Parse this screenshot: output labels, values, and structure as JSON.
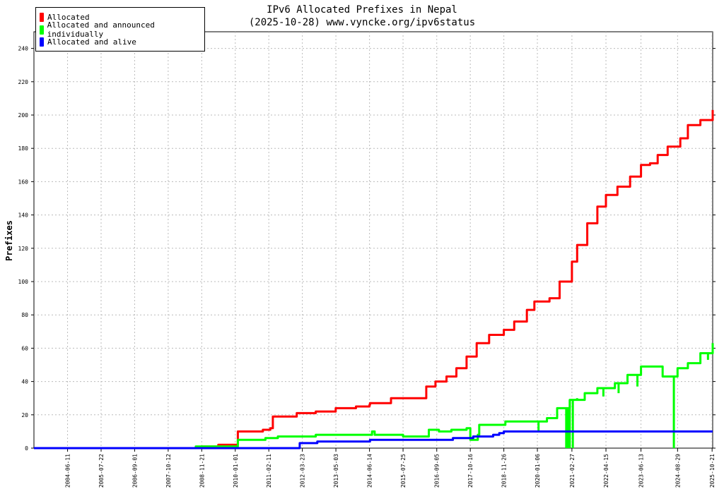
{
  "chart_data": {
    "type": "line",
    "title": "IPv6 Allocated Prefixes in Nepal",
    "subtitle": "(2025-10-28) www.vyncke.org/ipv6status",
    "ylabel": "Prefixes",
    "xlabel": "",
    "ylim": [
      0,
      250
    ],
    "yticks": [
      0,
      20,
      40,
      60,
      80,
      100,
      120,
      140,
      160,
      180,
      200,
      220,
      240
    ],
    "xlim": [
      "2003-05-01",
      "2025-10-28"
    ],
    "xticks": [
      "2004-06-11",
      "2005-07-22",
      "2006-09-01",
      "2007-10-12",
      "2008-11-21",
      "2010-01-01",
      "2011-02-11",
      "2012-03-23",
      "2013-05-03",
      "2014-06-14",
      "2015-07-25",
      "2016-09-05",
      "2017-10-16",
      "2018-11-26",
      "2020-01-06",
      "2021-02-27",
      "2022-04-15",
      "2023-06-13",
      "2024-08-29",
      "2025-10-21"
    ],
    "grid": true,
    "legend_position": "top-left",
    "series": [
      {
        "name": "Allocated",
        "color": "#ff0000",
        "points": [
          [
            "2003-05-01",
            0
          ],
          [
            "2008-11-10",
            0
          ],
          [
            "2008-11-20",
            1
          ],
          [
            "2009-06-01",
            1
          ],
          [
            "2009-06-10",
            2
          ],
          [
            "2009-12-20",
            2
          ],
          [
            "2010-02-01",
            10
          ],
          [
            "2010-12-01",
            11
          ],
          [
            "2011-03-01",
            12
          ],
          [
            "2011-04-01",
            19
          ],
          [
            "2011-12-01",
            19
          ],
          [
            "2012-01-15",
            21
          ],
          [
            "2012-09-01",
            22
          ],
          [
            "2013-05-01",
            24
          ],
          [
            "2014-01-01",
            25
          ],
          [
            "2014-06-14",
            26
          ],
          [
            "2014-06-20",
            27
          ],
          [
            "2015-01-01",
            27
          ],
          [
            "2015-03-01",
            30
          ],
          [
            "2016-03-01",
            30
          ],
          [
            "2016-05-01",
            37
          ],
          [
            "2016-08-20",
            40
          ],
          [
            "2017-01-01",
            43
          ],
          [
            "2017-05-01",
            48
          ],
          [
            "2017-09-01",
            55
          ],
          [
            "2018-01-01",
            63
          ],
          [
            "2018-06-01",
            68
          ],
          [
            "2018-11-26",
            71
          ],
          [
            "2019-04-01",
            76
          ],
          [
            "2019-09-01",
            83
          ],
          [
            "2019-12-01",
            88
          ],
          [
            "2020-06-01",
            90
          ],
          [
            "2020-10-01",
            100
          ],
          [
            "2021-02-27",
            112
          ],
          [
            "2021-05-01",
            122
          ],
          [
            "2021-09-01",
            135
          ],
          [
            "2022-01-01",
            145
          ],
          [
            "2022-04-15",
            152
          ],
          [
            "2022-09-01",
            157
          ],
          [
            "2023-02-01",
            163
          ],
          [
            "2023-06-13",
            170
          ],
          [
            "2023-10-01",
            171
          ],
          [
            "2024-01-01",
            176
          ],
          [
            "2024-05-01",
            181
          ],
          [
            "2024-10-01",
            186
          ],
          [
            "2025-01-01",
            194
          ],
          [
            "2025-06-01",
            197
          ],
          [
            "2025-10-28",
            203
          ]
        ]
      },
      {
        "name": "Allocated and announced individually",
        "color": "#00ff00",
        "points": [
          [
            "2003-05-01",
            0
          ],
          [
            "2008-09-01",
            0
          ],
          [
            "2008-09-10",
            1
          ],
          [
            "2009-12-20",
            1
          ],
          [
            "2010-02-01",
            5
          ],
          [
            "2011-01-01",
            6
          ],
          [
            "2011-06-01",
            7
          ],
          [
            "2012-06-01",
            7
          ],
          [
            "2012-09-01",
            8
          ],
          [
            "2014-06-14",
            8
          ],
          [
            "2014-07-15",
            10
          ],
          [
            "2014-08-15",
            8
          ],
          [
            "2015-07-25",
            7
          ],
          [
            "2016-04-01",
            7
          ],
          [
            "2016-06-01",
            11
          ],
          [
            "2016-10-01",
            10
          ],
          [
            "2017-03-01",
            11
          ],
          [
            "2017-09-01",
            12
          ],
          [
            "2017-10-16",
            5
          ],
          [
            "2018-01-15",
            8
          ],
          [
            "2018-02-01",
            14
          ],
          [
            "2018-11-26",
            14
          ],
          [
            "2018-12-15",
            16
          ],
          [
            "2019-12-01",
            16
          ],
          [
            "2020-05-01",
            18
          ],
          [
            "2020-09-01",
            24
          ],
          [
            "2021-02-01",
            29
          ],
          [
            "2021-08-01",
            33
          ],
          [
            "2022-01-01",
            36
          ],
          [
            "2022-08-01",
            39
          ],
          [
            "2023-01-01",
            44
          ],
          [
            "2023-06-13",
            49
          ],
          [
            "2023-09-01",
            49
          ],
          [
            "2024-03-01",
            43
          ],
          [
            "2024-08-29",
            48
          ],
          [
            "2025-01-01",
            51
          ],
          [
            "2025-06-01",
            57
          ],
          [
            "2025-10-28",
            63
          ]
        ],
        "drops": [
          [
            "2020-01-20",
            10
          ],
          [
            "2020-12-20",
            0
          ],
          [
            "2021-01-10",
            0
          ],
          [
            "2021-02-01",
            0
          ],
          [
            "2021-03-10",
            0
          ],
          [
            "2021-05-01",
            30
          ],
          [
            "2022-03-15",
            31
          ],
          [
            "2022-09-15",
            33
          ],
          [
            "2023-05-01",
            37
          ],
          [
            "2024-07-15",
            0
          ],
          [
            "2025-09-01",
            53
          ]
        ]
      },
      {
        "name": "Allocated and alive",
        "color": "#0000ff",
        "points": [
          [
            "2003-05-01",
            0
          ],
          [
            "2012-02-01",
            0
          ],
          [
            "2012-02-20",
            3
          ],
          [
            "2012-09-01",
            3
          ],
          [
            "2012-09-20",
            4
          ],
          [
            "2014-06-14",
            4
          ],
          [
            "2014-06-20",
            5
          ],
          [
            "2017-03-01",
            5
          ],
          [
            "2017-03-20",
            6
          ],
          [
            "2017-11-01",
            6
          ],
          [
            "2017-11-20",
            7
          ],
          [
            "2018-07-01",
            7
          ],
          [
            "2018-07-20",
            8
          ],
          [
            "2018-10-01",
            9
          ],
          [
            "2018-11-26",
            10
          ],
          [
            "2025-10-28",
            10
          ]
        ]
      }
    ]
  }
}
